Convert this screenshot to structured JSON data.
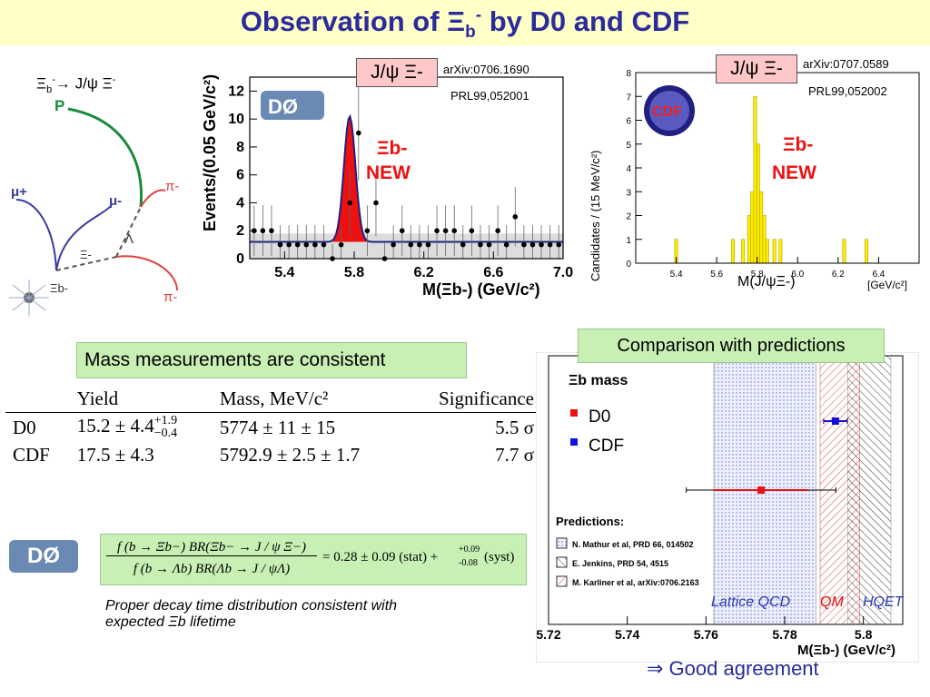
{
  "title": {
    "pre": "Observation of Ξ",
    "sub": "b",
    "sup": "-",
    "post": " by D0 and CDF"
  },
  "decay_diagram": {
    "label_pre": "Ξ",
    "label_sub": "b",
    "label_sup": "-",
    "label_post": "→ J/ψ Ξ",
    "label_sup2": "-",
    "p": "P",
    "mu_plus": "μ+",
    "mu_minus": "μ-",
    "pi_minus_1": "π-",
    "lambda": "Λ",
    "xi_minus": "Ξ-",
    "pi_minus_2": "π-",
    "xi_b": "Ξb-"
  },
  "d0_plot": {
    "tag": "J/ψ Ξ-",
    "arxiv": "arXiv:0706.1690",
    "prl": "PRL99,052001",
    "new_label": "NEW",
    "xi_label": "Ξb-",
    "logo": "DØ"
  },
  "cdf_plot": {
    "tag": "J/ψ Ξ-",
    "arxiv": "arXiv:0707.0589",
    "prl": "PRL99,052002",
    "new_label": "NEW",
    "xi_label": "Ξb-",
    "logo": "CDF"
  },
  "mass_consistent": "Mass measurements are consistent",
  "table": {
    "headers": [
      "",
      "Yield",
      "Mass, MeV/c²",
      "Significance"
    ],
    "rows": [
      {
        "exp": "D0",
        "yield": "15.2 ± 4.4",
        "yield_up": "+1.9",
        "yield_dn": "−0.4",
        "mass": "5774 ± 11 ± 15",
        "sig": "5.5 σ"
      },
      {
        "exp": "CDF",
        "yield": "17.5 ± 4.3",
        "yield_up": "",
        "yield_dn": "",
        "mass": "5792.9 ± 2.5 ± 1.7",
        "sig": "7.7 σ"
      }
    ]
  },
  "formula": {
    "num": "f (b → Ξb−) BR(Ξb− → J / ψ Ξ−)",
    "den": "f (b → Λb) BR(Λb → J / ψΛ)",
    "rhs": "= 0.28 ± 0.09 (stat) +",
    "syst_up": "+0.09",
    "syst_dn": "-0.08",
    "syst": "(syst)"
  },
  "decay_time_note": "Proper decay time distribution consistent with expected Ξb lifetime",
  "comparison": {
    "header": "Comparison with predictions",
    "mass_title": "Ξb mass",
    "legend": [
      {
        "name": "D0",
        "color": "#ee1111"
      },
      {
        "name": "CDF",
        "color": "#1111dd"
      }
    ],
    "predictions_title": "Predictions:",
    "predictions": [
      "N. Mathur et al, PRD 66, 014502",
      "E. Jenkins, PRD 54, 4515",
      "M. Karliner et al, arXiv:0706.2163"
    ],
    "region_labels": [
      "Lattice QCD",
      "QM",
      "HQET"
    ],
    "xlabel": "M(Ξb-) (GeV/c²)",
    "good": "⇒ Good agreement"
  },
  "chart_data": [
    {
      "type": "bar",
      "title": "",
      "xlabel": "M(Ξb-) (GeV/c²)",
      "ylabel": "Events/(0.05 GeV/c²)",
      "xlim": [
        5.2,
        7.0
      ],
      "ylim": [
        0,
        13
      ],
      "x_ticks": [
        "5.4",
        "5.8",
        "6.2",
        "6.6",
        "7.0"
      ],
      "y_ticks": [
        "0",
        "2",
        "4",
        "6",
        "8",
        "10",
        "12"
      ],
      "x": [
        5.225,
        5.275,
        5.325,
        5.375,
        5.425,
        5.475,
        5.525,
        5.575,
        5.625,
        5.675,
        5.725,
        5.775,
        5.825,
        5.875,
        5.925,
        5.975,
        6.025,
        6.075,
        6.125,
        6.175,
        6.225,
        6.275,
        6.325,
        6.375,
        6.425,
        6.475,
        6.525,
        6.575,
        6.625,
        6.675,
        6.725,
        6.775,
        6.825,
        6.875,
        6.925,
        6.975
      ],
      "values": [
        2,
        2,
        2,
        1,
        1,
        1,
        1,
        1,
        1,
        0,
        1,
        4,
        9,
        2,
        4,
        0,
        1,
        2,
        1,
        1,
        1,
        2,
        2,
        2,
        1,
        2,
        1,
        1,
        2,
        1,
        3,
        1,
        1,
        1,
        1,
        1
      ],
      "fit_peak": 9,
      "fit_center": 5.774,
      "background": 1.2
    },
    {
      "type": "bar",
      "title": "",
      "xlabel": "M(J/ψΞ-)",
      "ylabel": "Candidates / (15 MeV/c²)",
      "xlim": [
        5.2,
        6.6
      ],
      "ylim": [
        0,
        8
      ],
      "x_ticks": [
        "5.4",
        "5.6",
        "5.8",
        "6.0",
        "6.2",
        "6.4"
      ],
      "y_ticks": [
        "0",
        "1",
        "2",
        "3",
        "4",
        "5",
        "6",
        "7",
        "8"
      ],
      "unit_label": "[GeV/c²]",
      "x": [
        5.4,
        5.68,
        5.73,
        5.76,
        5.775,
        5.79,
        5.805,
        5.82,
        5.835,
        5.85,
        5.885,
        5.915,
        6.23,
        6.34
      ],
      "values": [
        1,
        1,
        1,
        2,
        3,
        7,
        5,
        3,
        2,
        1,
        1,
        1,
        1,
        1
      ]
    },
    {
      "type": "scatter",
      "title": "Ξb mass",
      "xlabel": "M(Ξb-) (GeV/c²)",
      "xlim": [
        5.72,
        5.81
      ],
      "x_ticks": [
        "5.72",
        "5.74",
        "5.76",
        "5.78",
        "5.8"
      ],
      "series": [
        {
          "name": "D0",
          "value": 5.774,
          "err_lo": 5.755,
          "err_hi": 5.793,
          "color": "#ee1111"
        },
        {
          "name": "CDF",
          "value": 5.7929,
          "err_lo": 5.7899,
          "err_hi": 5.7959,
          "color": "#1111dd"
        }
      ],
      "bands": [
        {
          "name": "Lattice QCD",
          "lo": 5.762,
          "hi": 5.788
        },
        {
          "name": "QM",
          "lo": 5.789,
          "hi": 5.799
        },
        {
          "name": "HQET",
          "lo": 5.796,
          "hi": 5.807
        }
      ]
    }
  ]
}
